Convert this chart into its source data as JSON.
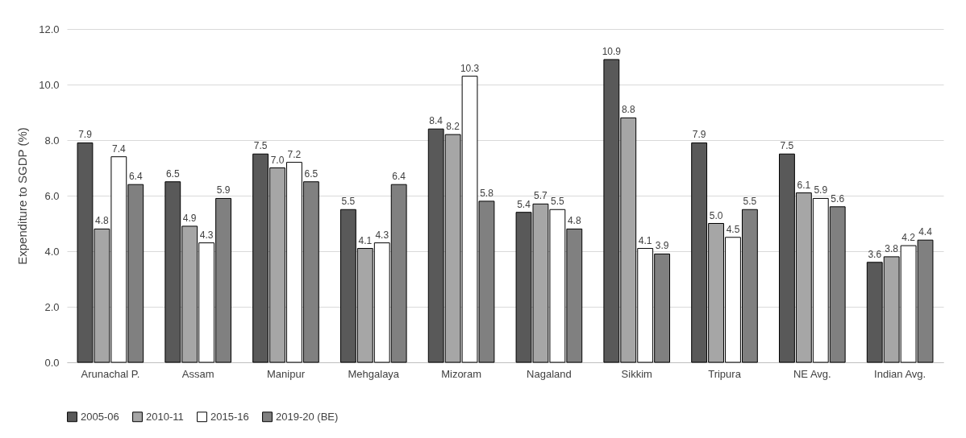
{
  "chart_data": {
    "type": "bar",
    "ylabel": "Expenditure to SGDP (%)",
    "categories": [
      "Arunachal P.",
      "Assam",
      "Manipur",
      "Mehgalaya",
      "Mizoram",
      "Nagaland",
      "Sikkim",
      "Tripura",
      "NE Avg.",
      "Indian Avg."
    ],
    "series": [
      {
        "name": "2005-06",
        "color": "#595959",
        "values": [
          7.9,
          6.5,
          7.5,
          5.5,
          8.4,
          5.4,
          10.9,
          7.9,
          7.5,
          3.6
        ],
        "value_labels": [
          "7.9",
          "6.5",
          "7.5",
          "5.5",
          "8.4",
          "5.4",
          "10.9",
          "7.9",
          "7.5",
          "3.6"
        ]
      },
      {
        "name": "2010-11",
        "color": "#a6a6a6",
        "values": [
          4.8,
          4.9,
          7.0,
          4.1,
          8.2,
          5.7,
          8.8,
          5.0,
          6.1,
          3.8
        ],
        "value_labels": [
          "4.8",
          "4.9",
          "7.0",
          "4.1",
          "8.2",
          "5.7",
          "8.8",
          "5.0",
          "6.1",
          "3.8"
        ]
      },
      {
        "name": "2015-16",
        "color": "#ffffff",
        "values": [
          7.4,
          4.3,
          7.2,
          4.3,
          10.3,
          5.5,
          4.1,
          4.5,
          5.9,
          4.2
        ],
        "value_labels": [
          "7.4",
          "4.3",
          "7.2",
          "4.3",
          "10.3",
          "5.5",
          "4.1",
          "4.5",
          "5.9",
          "4.2"
        ]
      },
      {
        "name": "2019-20 (BE)",
        "color": "#808080",
        "values": [
          6.4,
          5.9,
          6.5,
          6.4,
          5.8,
          4.8,
          3.9,
          5.5,
          5.6,
          4.4
        ],
        "value_labels": [
          "6.4",
          "5.9",
          "6.5",
          "6.4",
          "5.8",
          "4.8",
          "3.9",
          "5.5",
          "5.6",
          "4.4"
        ]
      }
    ],
    "ylim": [
      0,
      12
    ],
    "yticks": [
      {
        "value": 0,
        "label": "0.0"
      },
      {
        "value": 2,
        "label": "2.0"
      },
      {
        "value": 4,
        "label": "4.0"
      },
      {
        "value": 6,
        "label": "6.0"
      },
      {
        "value": 8,
        "label": "8.0"
      },
      {
        "value": 10,
        "label": "10.0"
      },
      {
        "value": 12,
        "label": "12.0"
      }
    ],
    "grid": "y",
    "legend": "bottom"
  }
}
